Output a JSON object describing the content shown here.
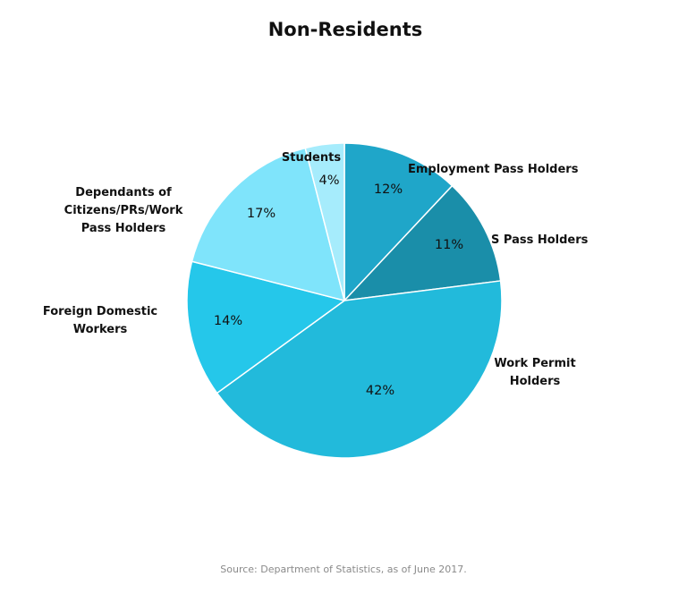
{
  "chart_data": {
    "type": "pie",
    "title": "Non-Residents",
    "slices": [
      {
        "label_lines": [
          "Employment Pass Holders"
        ],
        "value": 12,
        "value_label": "12%",
        "color": "#1fa6c9"
      },
      {
        "label_lines": [
          "S Pass Holders"
        ],
        "value": 11,
        "value_label": "11%",
        "color": "#1a8ea9"
      },
      {
        "label_lines": [
          "Work Permit",
          "Holders"
        ],
        "value": 42,
        "value_label": "42%",
        "color": "#22badb"
      },
      {
        "label_lines": [
          "Foreign Domestic",
          "Workers"
        ],
        "value": 14,
        "value_label": "14%",
        "color": "#25c7ea"
      },
      {
        "label_lines": [
          "Dependants of",
          "Citizens/PRs/Work",
          "Pass Holders"
        ],
        "value": 17,
        "value_label": "17%",
        "color": "#7fe4fb"
      },
      {
        "label_lines": [
          "Students"
        ],
        "value": 4,
        "value_label": "4%",
        "color": "#a6ecfc"
      }
    ],
    "source": "Source: Department of Statistics, as of June 2017."
  }
}
